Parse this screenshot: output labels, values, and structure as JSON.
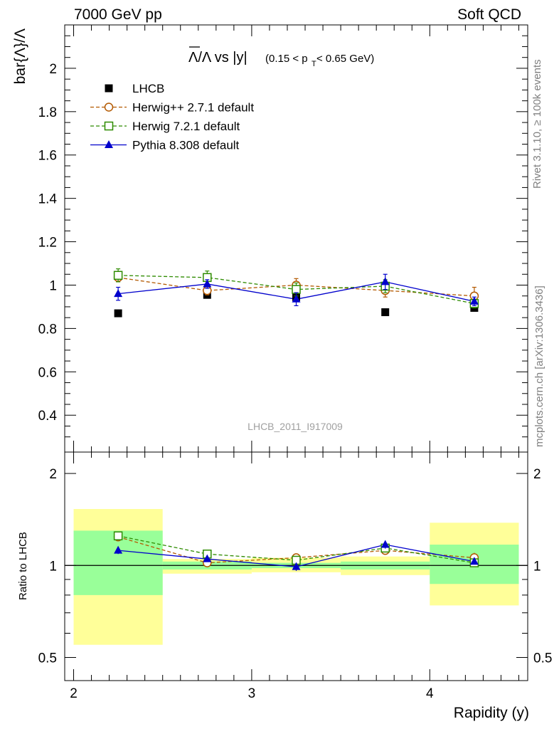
{
  "header": {
    "left": "7000 GeV pp",
    "right": "Soft QCD"
  },
  "side_labels": {
    "rivet": "Rivet 3.1.10, ≥ 100k events",
    "mcplots": "mcplots.cern.ch [arXiv:1306.3436]"
  },
  "watermark": "LHCB_2011_I917009",
  "colors": {
    "lhcb": "#000000",
    "herwigpp": "#b35900",
    "herwig7": "#2e8b00",
    "pythia": "#0000cc",
    "band_inner": "#99ff99",
    "band_outer": "#ffff99"
  },
  "chart_data": [
    {
      "type": "scatter",
      "panel": "main",
      "title_parts": {
        "lead": "Λ/Λ vs |y|",
        "cut_open": "(0.15 < p",
        "cut_sub": "T",
        "cut_close": " < 0.65 GeV)"
      },
      "xlabel": "",
      "ylabel": "bar{Λ}/Λ",
      "xlim": [
        1.95,
        4.55
      ],
      "ylim": [
        0.23,
        2.2
      ],
      "y_ticks": [
        "0.4",
        "0.6",
        "0.8",
        "1",
        "1.2",
        "1.4",
        "1.6",
        "1.8",
        "2"
      ],
      "legend_position": "top-left",
      "x": [
        2.25,
        2.75,
        3.25,
        3.75,
        4.25
      ],
      "series": [
        {
          "name": "LHCB",
          "marker": "filled-square",
          "style": "points",
          "values": [
            0.87,
            0.955,
            0.945,
            0.875,
            0.895
          ]
        },
        {
          "name": "Herwig++ 2.7.1 default",
          "marker": "open-circle",
          "style": "dashed",
          "values": [
            1.035,
            0.975,
            1.0,
            0.975,
            0.95
          ],
          "errors": [
            0.02,
            0.02,
            0.03,
            0.03,
            0.04
          ]
        },
        {
          "name": "Herwig 7.2.1 default",
          "marker": "open-square",
          "style": "dashed",
          "values": [
            1.045,
            1.035,
            0.98,
            0.995,
            0.915
          ],
          "errors": [
            0.03,
            0.03,
            0.03,
            0.03,
            0.02
          ]
        },
        {
          "name": "Pythia 8.308 default",
          "marker": "filled-triangle",
          "style": "solid",
          "values": [
            0.96,
            1.005,
            0.935,
            1.015,
            0.925
          ],
          "errors": [
            0.03,
            0.02,
            0.03,
            0.035,
            0.02
          ]
        }
      ]
    },
    {
      "type": "scatter",
      "panel": "ratio",
      "xlabel": "Rapidity (y)",
      "ylabel": "Ratio to LHCB",
      "xlim": [
        1.95,
        4.55
      ],
      "ylim": [
        0.42,
        2.35
      ],
      "log_y": true,
      "x_ticks": [
        "2",
        "3",
        "4"
      ],
      "y_ticks": [
        "0.5",
        "1",
        "2"
      ],
      "x": [
        2.25,
        2.75,
        3.25,
        3.75,
        4.25
      ],
      "bands": {
        "bin_edges": [
          2.0,
          2.5,
          3.0,
          3.5,
          4.0,
          4.5
        ],
        "outer": [
          [
            0.55,
            1.53
          ],
          [
            0.94,
            1.05
          ],
          [
            0.95,
            1.06
          ],
          [
            0.93,
            1.07
          ],
          [
            0.74,
            1.38
          ]
        ],
        "inner": [
          [
            0.8,
            1.3
          ],
          [
            0.97,
            1.03
          ],
          [
            0.98,
            1.02
          ],
          [
            0.97,
            1.03
          ],
          [
            0.87,
            1.17
          ]
        ]
      },
      "series": [
        {
          "name": "Herwig++ 2.7.1 default",
          "values": [
            1.24,
            1.02,
            1.06,
            1.12,
            1.06
          ],
          "errors": [
            0.02,
            0.02,
            0.03,
            0.03,
            0.04
          ]
        },
        {
          "name": "Herwig 7.2.1 default",
          "values": [
            1.25,
            1.09,
            1.04,
            1.14,
            1.02
          ],
          "errors": [
            0.03,
            0.03,
            0.03,
            0.03,
            0.02
          ]
        },
        {
          "name": "Pythia 8.308 default",
          "values": [
            1.12,
            1.05,
            0.99,
            1.17,
            1.03
          ],
          "errors": [
            0.03,
            0.02,
            0.03,
            0.035,
            0.02
          ]
        }
      ]
    }
  ]
}
